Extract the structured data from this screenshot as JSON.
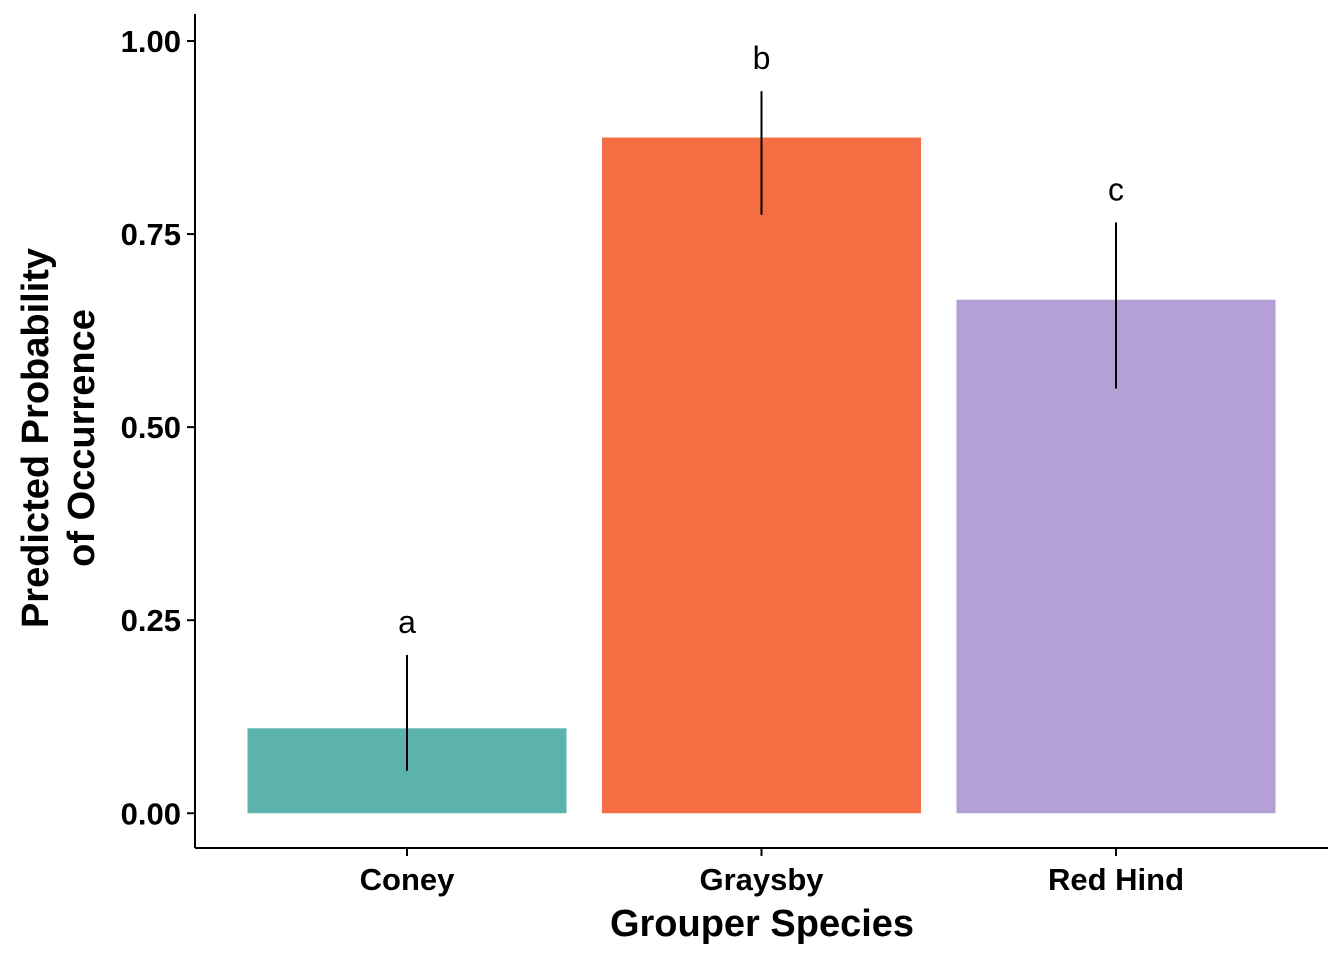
{
  "chart_data": {
    "type": "bar",
    "title": "",
    "xlabel": "Grouper Species",
    "ylabel_lines": [
      "Predicted Probability",
      "of Occurrence"
    ],
    "categories": [
      "Coney",
      "Graysby",
      "Red Hind"
    ],
    "values": [
      0.11,
      0.875,
      0.665
    ],
    "error_upper": [
      0.205,
      0.935,
      0.765
    ],
    "error_lower": [
      0.055,
      0.775,
      0.55
    ],
    "significance_labels": [
      "a",
      "b",
      "c"
    ],
    "colors": [
      "#5bb3ab",
      "#f46d43",
      "#b4a0d4"
    ],
    "ylim": [
      -0.045,
      1.035
    ],
    "y_ticks": [
      0.0,
      0.25,
      0.5,
      0.75,
      1.0
    ],
    "y_tick_labels": [
      "0.00",
      "0.25",
      "0.50",
      "0.75",
      "1.00"
    ],
    "grid": false,
    "legend": "none"
  }
}
